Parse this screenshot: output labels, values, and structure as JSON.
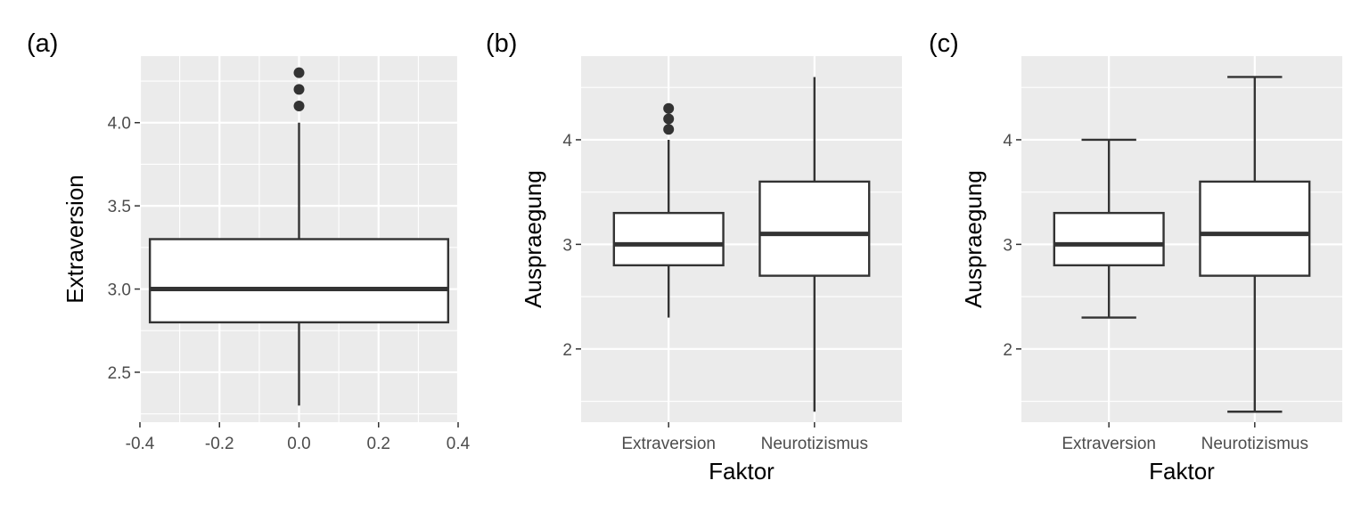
{
  "colors": {
    "panel_bg": "#EBEBEB",
    "grid": "#FFFFFF",
    "box_fill": "#FFFFFF",
    "box_stroke": "#333333",
    "tick_text": "#4D4D4D",
    "label_text": "#000000"
  },
  "chart_data": [
    {
      "type": "box",
      "tag": "(a)",
      "xlabel": "",
      "ylabel": "Extraversion",
      "xlim": [
        -0.4,
        0.4
      ],
      "ylim": [
        2.2,
        4.4
      ],
      "x_ticks": [
        -0.4,
        -0.2,
        0.0,
        0.2,
        0.4
      ],
      "x_tick_labels": [
        "-0.4",
        "-0.2",
        "0.0",
        "0.2",
        "0.4"
      ],
      "y_ticks": [
        2.5,
        3.0,
        3.5,
        4.0
      ],
      "y_tick_labels": [
        "2.5",
        "3.0",
        "3.5",
        "4.0"
      ],
      "whisker_caps": false,
      "boxes": [
        {
          "x_center": 0.0,
          "x_half_width": 0.375,
          "min": 2.3,
          "q1": 2.8,
          "median": 3.0,
          "q3": 3.3,
          "max": 4.0,
          "outliers": [
            4.1,
            4.2,
            4.3
          ]
        }
      ]
    },
    {
      "type": "box",
      "tag": "(b)",
      "xlabel": "Faktor",
      "ylabel": "Auspraegung",
      "ylim": [
        1.3,
        4.8
      ],
      "categories": [
        "Extraversion",
        "Neurotizismus"
      ],
      "y_ticks": [
        2,
        3,
        4
      ],
      "y_tick_labels": [
        "2",
        "3",
        "4"
      ],
      "whisker_caps": false,
      "boxes": [
        {
          "category": "Extraversion",
          "min": 2.3,
          "q1": 2.8,
          "median": 3.0,
          "q3": 3.3,
          "max": 4.0,
          "outliers": [
            4.1,
            4.2,
            4.3
          ]
        },
        {
          "category": "Neurotizismus",
          "min": 1.4,
          "q1": 2.7,
          "median": 3.1,
          "q3": 3.6,
          "max": 4.6,
          "outliers": []
        }
      ]
    },
    {
      "type": "box",
      "tag": "(c)",
      "xlabel": "Faktor",
      "ylabel": "Auspraegung",
      "ylim": [
        1.3,
        4.8
      ],
      "categories": [
        "Extraversion",
        "Neurotizismus"
      ],
      "y_ticks": [
        2,
        3,
        4
      ],
      "y_tick_labels": [
        "2",
        "3",
        "4"
      ],
      "whisker_caps": true,
      "boxes": [
        {
          "category": "Extraversion",
          "min": 2.3,
          "q1": 2.8,
          "median": 3.0,
          "q3": 3.3,
          "max": 4.0,
          "outliers": []
        },
        {
          "category": "Neurotizismus",
          "min": 1.4,
          "q1": 2.7,
          "median": 3.1,
          "q3": 3.6,
          "max": 4.6,
          "outliers": []
        }
      ]
    }
  ]
}
